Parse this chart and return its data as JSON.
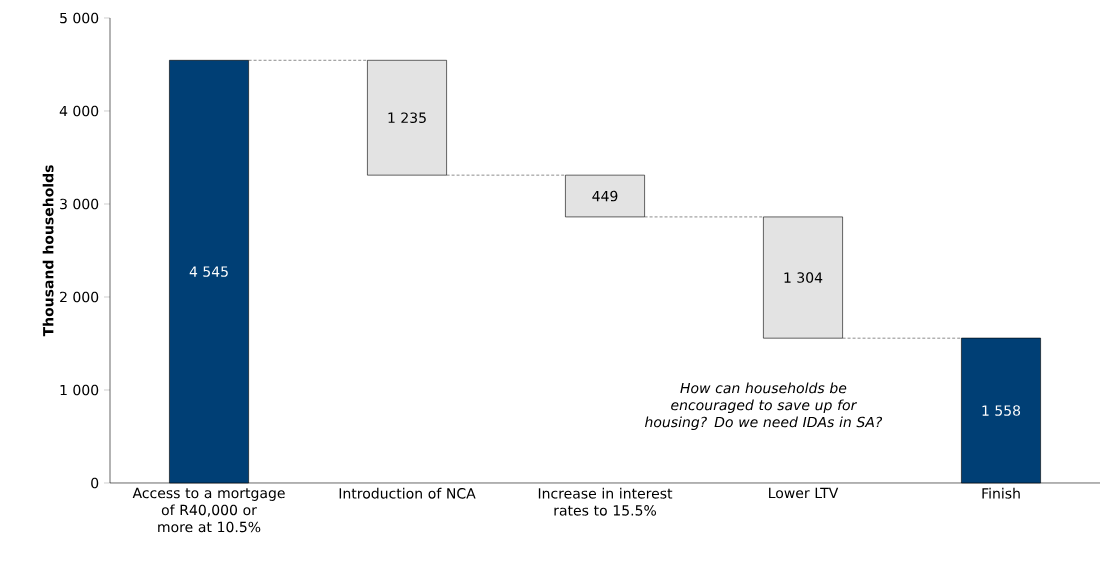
{
  "chart_data": {
    "type": "bar",
    "ylabel": "Thousand households",
    "categories": [
      "Access to a mortgage of R40,000 or more at 10.5%",
      "Introduction of NCA",
      "Increase in interest rates to 15.5%",
      "Lower LTV",
      "Finish"
    ],
    "values": [
      4545,
      1235,
      449,
      1304,
      1558
    ],
    "base": [
      0,
      3310,
      2861,
      1557,
      0
    ],
    "colors": [
      "#003f75",
      "#e3e3e3",
      "#e3e3e3",
      "#e3e3e3",
      "#003f75"
    ],
    "value_labels": [
      "4 545",
      "1 235",
      "449",
      "1 304",
      "1 558"
    ],
    "ylim": [
      0,
      5000
    ],
    "yticks": [
      0,
      {
        "value": 1000,
        "label": "1 000"
      },
      {
        "value": 2000,
        "label": "2 000"
      },
      {
        "value": 3000,
        "label": "3 000"
      },
      {
        "value": 4000,
        "label": "4 000"
      },
      {
        "value": 5000,
        "label": "5 000"
      }
    ],
    "annotations": [
      "How can households be encouraged to save up for housing? Do we need IDAs in SA?"
    ],
    "grid": false
  }
}
